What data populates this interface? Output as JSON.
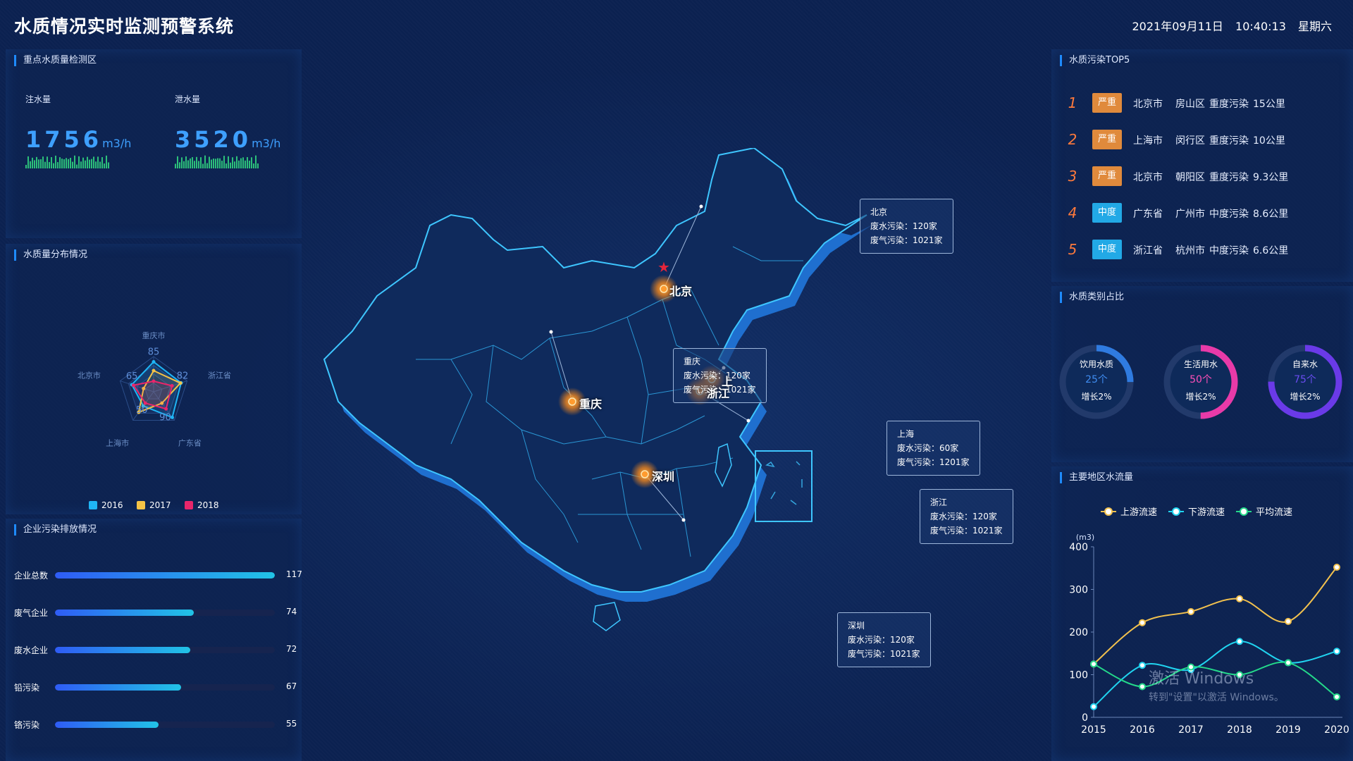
{
  "header": {
    "title": "水质情况实时监测预警系统",
    "date": "2021年09月11日",
    "time": "10:40:13",
    "weekday": "星期六"
  },
  "panel_monitor": {
    "title": "重点水质量检测区",
    "inflow": {
      "label": "注水量",
      "value": "1756",
      "unit": "m3/h"
    },
    "outflow": {
      "label": "泄水量",
      "value": "3520",
      "unit": "m3/h"
    }
  },
  "panel_radar": {
    "title": "水质量分布情况",
    "chart_data": {
      "type": "radar",
      "indicators": [
        "重庆市",
        "浙江省",
        "广东省",
        "上海市",
        "北京市"
      ],
      "point_labels": [
        "85",
        "82",
        "90",
        "50",
        "65"
      ],
      "series": [
        {
          "name": "2016",
          "color": "#1fb5f5",
          "values": [
            85,
            82,
            90,
            50,
            65
          ]
        },
        {
          "name": "2017",
          "color": "#f5c346",
          "values": [
            60,
            80,
            40,
            72,
            30
          ]
        },
        {
          "name": "2018",
          "color": "#e8266b",
          "values": [
            30,
            55,
            60,
            40,
            60
          ]
        }
      ],
      "max": 100,
      "legend_position": "bottom"
    }
  },
  "panel_enterprise": {
    "title": "企业污染排放情况",
    "max": 117,
    "items": [
      {
        "label": "企业总数",
        "value": 117
      },
      {
        "label": "废气企业",
        "value": 74
      },
      {
        "label": "废水企业",
        "value": 72
      },
      {
        "label": "铅污染",
        "value": 67
      },
      {
        "label": "铬污染",
        "value": 55
      }
    ]
  },
  "map": {
    "capital_marker_color": "#e5253b",
    "cities": [
      {
        "name": "北京",
        "label": "北京",
        "tip": {
          "title": "北京",
          "line1": "废水污染：120家",
          "line2": "废气污染：1021家"
        }
      },
      {
        "name": "重庆",
        "label": "重庆",
        "tip": {
          "title": "重庆",
          "line1": "废水污染：120家",
          "line2": "废气污染：1021家"
        }
      },
      {
        "name": "上海",
        "label": "上",
        "tip": {
          "title": "上海",
          "line1": "废水污染：60家",
          "line2": "废气污染：1201家"
        }
      },
      {
        "name": "浙江",
        "label": "浙江",
        "tip": {
          "title": "浙江",
          "line1": "废水污染：120家",
          "line2": "废气污染：1021家"
        }
      },
      {
        "name": "深圳",
        "label": "深圳",
        "tip": {
          "title": "深圳",
          "line1": "废水污染：120家",
          "line2": "废气污染：1021家"
        }
      }
    ]
  },
  "panel_top5": {
    "title": "水质污染TOP5",
    "rows": [
      {
        "rank": "1",
        "level": "严重",
        "level_color": "#e08a3c",
        "province": "北京市",
        "district": "房山区",
        "status": "重度污染",
        "distance": "15公里"
      },
      {
        "rank": "2",
        "level": "严重",
        "level_color": "#e08a3c",
        "province": "上海市",
        "district": "闵行区",
        "status": "重度污染",
        "distance": "10公里"
      },
      {
        "rank": "3",
        "level": "严重",
        "level_color": "#e08a3c",
        "province": "北京市",
        "district": "朝阳区",
        "status": "重度污染",
        "distance": "9.3公里"
      },
      {
        "rank": "4",
        "level": "中度",
        "level_color": "#22a9e6",
        "province": "广东省",
        "district": "广州市",
        "status": "中度污染",
        "distance": "8.6公里"
      },
      {
        "rank": "5",
        "level": "中度",
        "level_color": "#22a9e6",
        "province": "浙江省",
        "district": "杭州市",
        "status": "中度污染",
        "distance": "6.6公里"
      }
    ]
  },
  "panel_types": {
    "title": "水质类别占比",
    "items": [
      {
        "name": "饮用水质",
        "count": "25个",
        "growth": "增长2%",
        "percent": 25,
        "color": "#2f7be0",
        "count_color": "#3f8cf0"
      },
      {
        "name": "生活用水",
        "count": "50个",
        "growth": "增长2%",
        "percent": 50,
        "color": "#e83aa8",
        "count_color": "#ff4fb8"
      },
      {
        "name": "自来水",
        "count": "75个",
        "growth": "增长2%",
        "percent": 75,
        "color": "#6a3ae8",
        "count_color": "#6a4cf0"
      }
    ]
  },
  "panel_flow": {
    "title": "主要地区水流量",
    "chart_data": {
      "type": "line",
      "x": [
        "2015",
        "2016",
        "2017",
        "2018",
        "2019",
        "2020"
      ],
      "ylabel": "(m3)",
      "ylim": [
        0,
        400
      ],
      "yticks": [
        0,
        100,
        200,
        300,
        400
      ],
      "series": [
        {
          "name": "上游流速",
          "color": "#f2c14e",
          "values": [
            125,
            222,
            248,
            278,
            225,
            352
          ]
        },
        {
          "name": "下游流速",
          "color": "#20d4f0",
          "values": [
            25,
            122,
            112,
            178,
            128,
            155
          ]
        },
        {
          "name": "平均流速",
          "color": "#24d98a",
          "values": [
            125,
            72,
            118,
            100,
            128,
            48
          ]
        }
      ],
      "legend_position": "top"
    }
  },
  "watermark": {
    "line1": "激活 Windows",
    "line2": "转到\"设置\"以激活 Windows。"
  }
}
